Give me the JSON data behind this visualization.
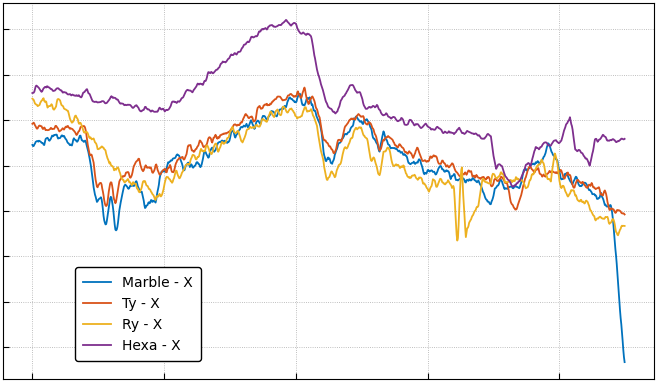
{
  "title": "",
  "xlabel": "",
  "ylabel": "",
  "background_color": "#ffffff",
  "axes_facecolor": "#ffffff",
  "grid_color": "#aaaaaa",
  "text_color": "#000000",
  "line_width": 1.3,
  "series": [
    {
      "label": "Marble - X",
      "color": "#0072bd"
    },
    {
      "label": "Ty - X",
      "color": "#d95319"
    },
    {
      "label": "Ry - X",
      "color": "#edb120"
    },
    {
      "label": "Hexa - X",
      "color": "#7e2f8e"
    }
  ],
  "legend": {
    "fontsize": 10,
    "facecolor": "#ffffff",
    "edgecolor": "#000000",
    "text_color": "#000000"
  },
  "figsize": [
    6.57,
    3.82
  ],
  "dpi": 100
}
